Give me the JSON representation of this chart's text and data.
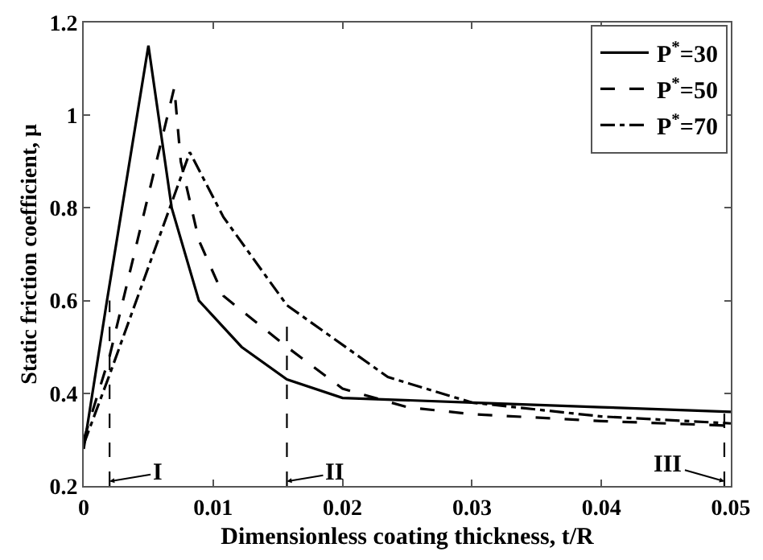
{
  "chart_data": {
    "type": "line",
    "xlabel": "Dimensionless coating thickness, t/R",
    "ylabel": "Static friction coefficient, μ",
    "xlim": [
      0,
      0.05
    ],
    "ylim": [
      0.2,
      1.2
    ],
    "xticks": [
      0,
      0.01,
      0.02,
      0.03,
      0.04,
      0.05
    ],
    "yticks": [
      0.2,
      0.4,
      0.6,
      0.8,
      1,
      1.2
    ],
    "legend": "top right",
    "marker": "none",
    "series": [
      {
        "name": "P$^{*}$=30",
        "color": "#000000",
        "line_style": "solid",
        "x": [
          0,
          0.0018,
          0.005,
          0.0068,
          0.0089,
          0.0122,
          0.0157,
          0.02,
          0.03,
          0.04,
          0.05
        ],
        "values": [
          0.28,
          0.6,
          1.15,
          0.8,
          0.6,
          0.5,
          0.43,
          0.39,
          0.38,
          0.37,
          0.36
        ]
      },
      {
        "name": "P$^{*}$=50",
        "color": "#000000",
        "line_style": "dashed",
        "x": [
          0,
          0.002,
          0.007,
          0.0075,
          0.0089,
          0.0108,
          0.0157,
          0.02,
          0.025,
          0.03,
          0.04,
          0.05
        ],
        "values": [
          0.3,
          0.48,
          1.06,
          0.9,
          0.73,
          0.61,
          0.5,
          0.41,
          0.37,
          0.355,
          0.34,
          0.33
        ]
      },
      {
        "name": "P$^{*}$=70",
        "color": "#000000",
        "line_style": "dashdot",
        "x": [
          0,
          0.002,
          0.0082,
          0.0108,
          0.0157,
          0.0235,
          0.03,
          0.04,
          0.05
        ],
        "values": [
          0.29,
          0.44,
          0.92,
          0.78,
          0.59,
          0.435,
          0.38,
          0.35,
          0.335
        ]
      },
      {
        "color": "#000000",
        "line_style": "dashed",
        "x": [
          0.002,
          0.002
        ],
        "values": [
          0.2,
          0.6
        ]
      },
      {
        "color": "#000000",
        "line_style": "dashed",
        "x": [
          0.0157,
          0.0157
        ],
        "values": [
          0.2,
          0.57
        ]
      },
      {
        "color": "#000000",
        "line_style": "dashed",
        "x": [
          0.0495,
          0.0495
        ],
        "values": [
          0.2,
          0.36
        ]
      }
    ],
    "annotations": [
      {
        "text": "I",
        "x": 0.002,
        "y": 0.21
      },
      {
        "text": "II",
        "x": 0.0157,
        "y": 0.21
      },
      {
        "text": "III",
        "x": 0.0495,
        "y": 0.21
      }
    ]
  }
}
